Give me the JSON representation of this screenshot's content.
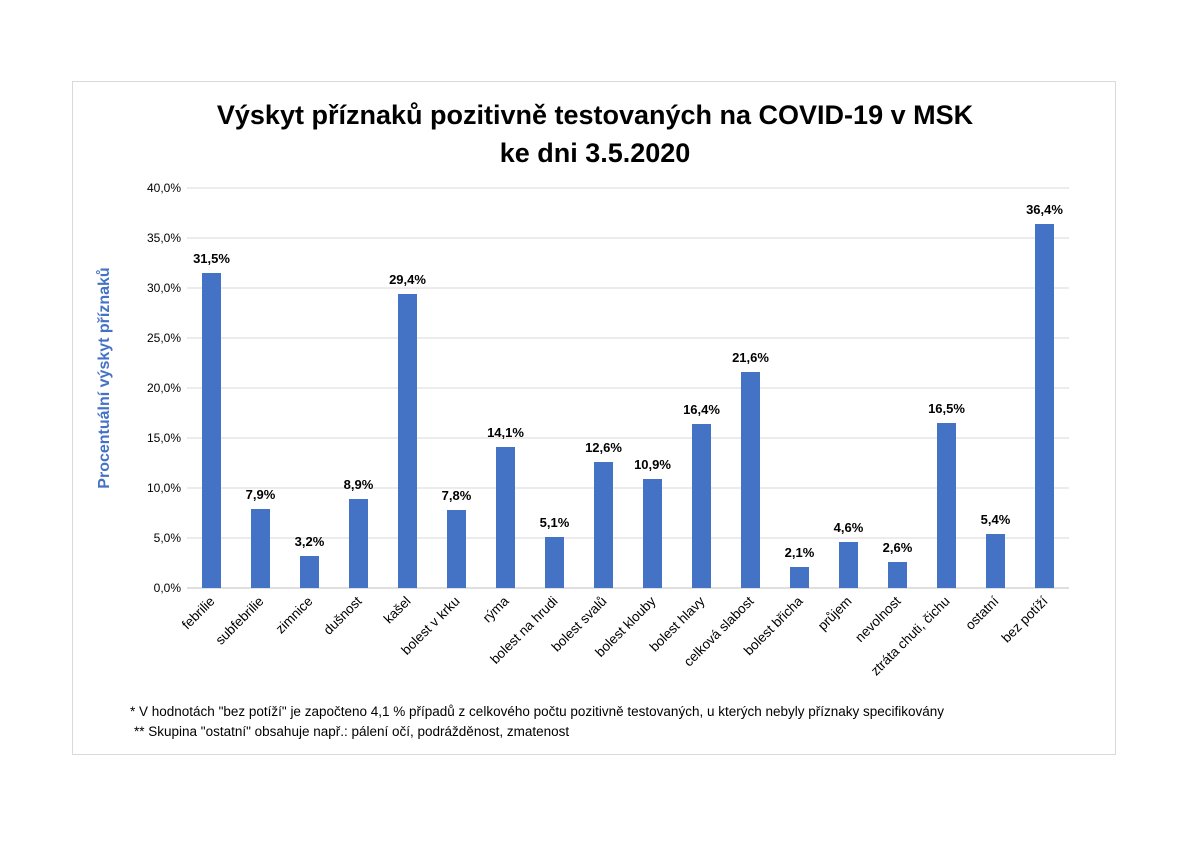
{
  "chart_data": {
    "type": "bar",
    "title": [
      "Výskyt příznaků pozitivně testovaných na COVID-19 v MSK",
      "ke dni 3.5.2020"
    ],
    "ylabel": "Procentuální výskyt příznaků",
    "xlabel": "",
    "ylim": [
      0,
      40
    ],
    "yticks": [
      0,
      5,
      10,
      15,
      20,
      25,
      30,
      35,
      40
    ],
    "ytick_labels": [
      "0,0%",
      "5,0%",
      "10,0%",
      "15,0%",
      "20,0%",
      "25,0%",
      "30,0%",
      "35,0%",
      "40,0%"
    ],
    "grid": true,
    "legend": "none",
    "categories": [
      "febrilie",
      "subfebrilie",
      "zimnice",
      "dušnost",
      "kašel",
      "bolest v krku",
      "rýma",
      "bolest na hrudi",
      "bolest svalů",
      "bolest klouby",
      "bolest hlavy",
      "celková slabost",
      "bolest břicha",
      "průjem",
      "nevolnost",
      "ztráta chuti, čichu",
      "ostatní",
      "bez potíží"
    ],
    "values": [
      31.5,
      7.9,
      3.2,
      8.9,
      29.4,
      7.8,
      14.1,
      5.1,
      12.6,
      10.9,
      16.4,
      21.6,
      2.1,
      4.6,
      2.6,
      16.5,
      5.4,
      36.4
    ],
    "data_labels": [
      "31,5%",
      "7,9%",
      "3,2%",
      "8,9%",
      "29,4%",
      "7,8%",
      "14,1%",
      "5,1%",
      "12,6%",
      "10,9%",
      "16,4%",
      "21,6%",
      "2,1%",
      "4,6%",
      "2,6%",
      "16,5%",
      "5,4%",
      "36,4%"
    ],
    "bar_color": "#4472c4",
    "ylabel_color": "#4472c4",
    "gridline_color": "#d9d9d9"
  },
  "notes": [
    "* V hodnotách \"bez  potíží\" je započteno 4,1 % případů z celkového počtu pozitivně testovaných, u kterých nebyly příznaky specifikovány",
    "** Skupina \"ostatní\" obsahuje např.: pálení očí, podrážděnost, zmatenost"
  ]
}
